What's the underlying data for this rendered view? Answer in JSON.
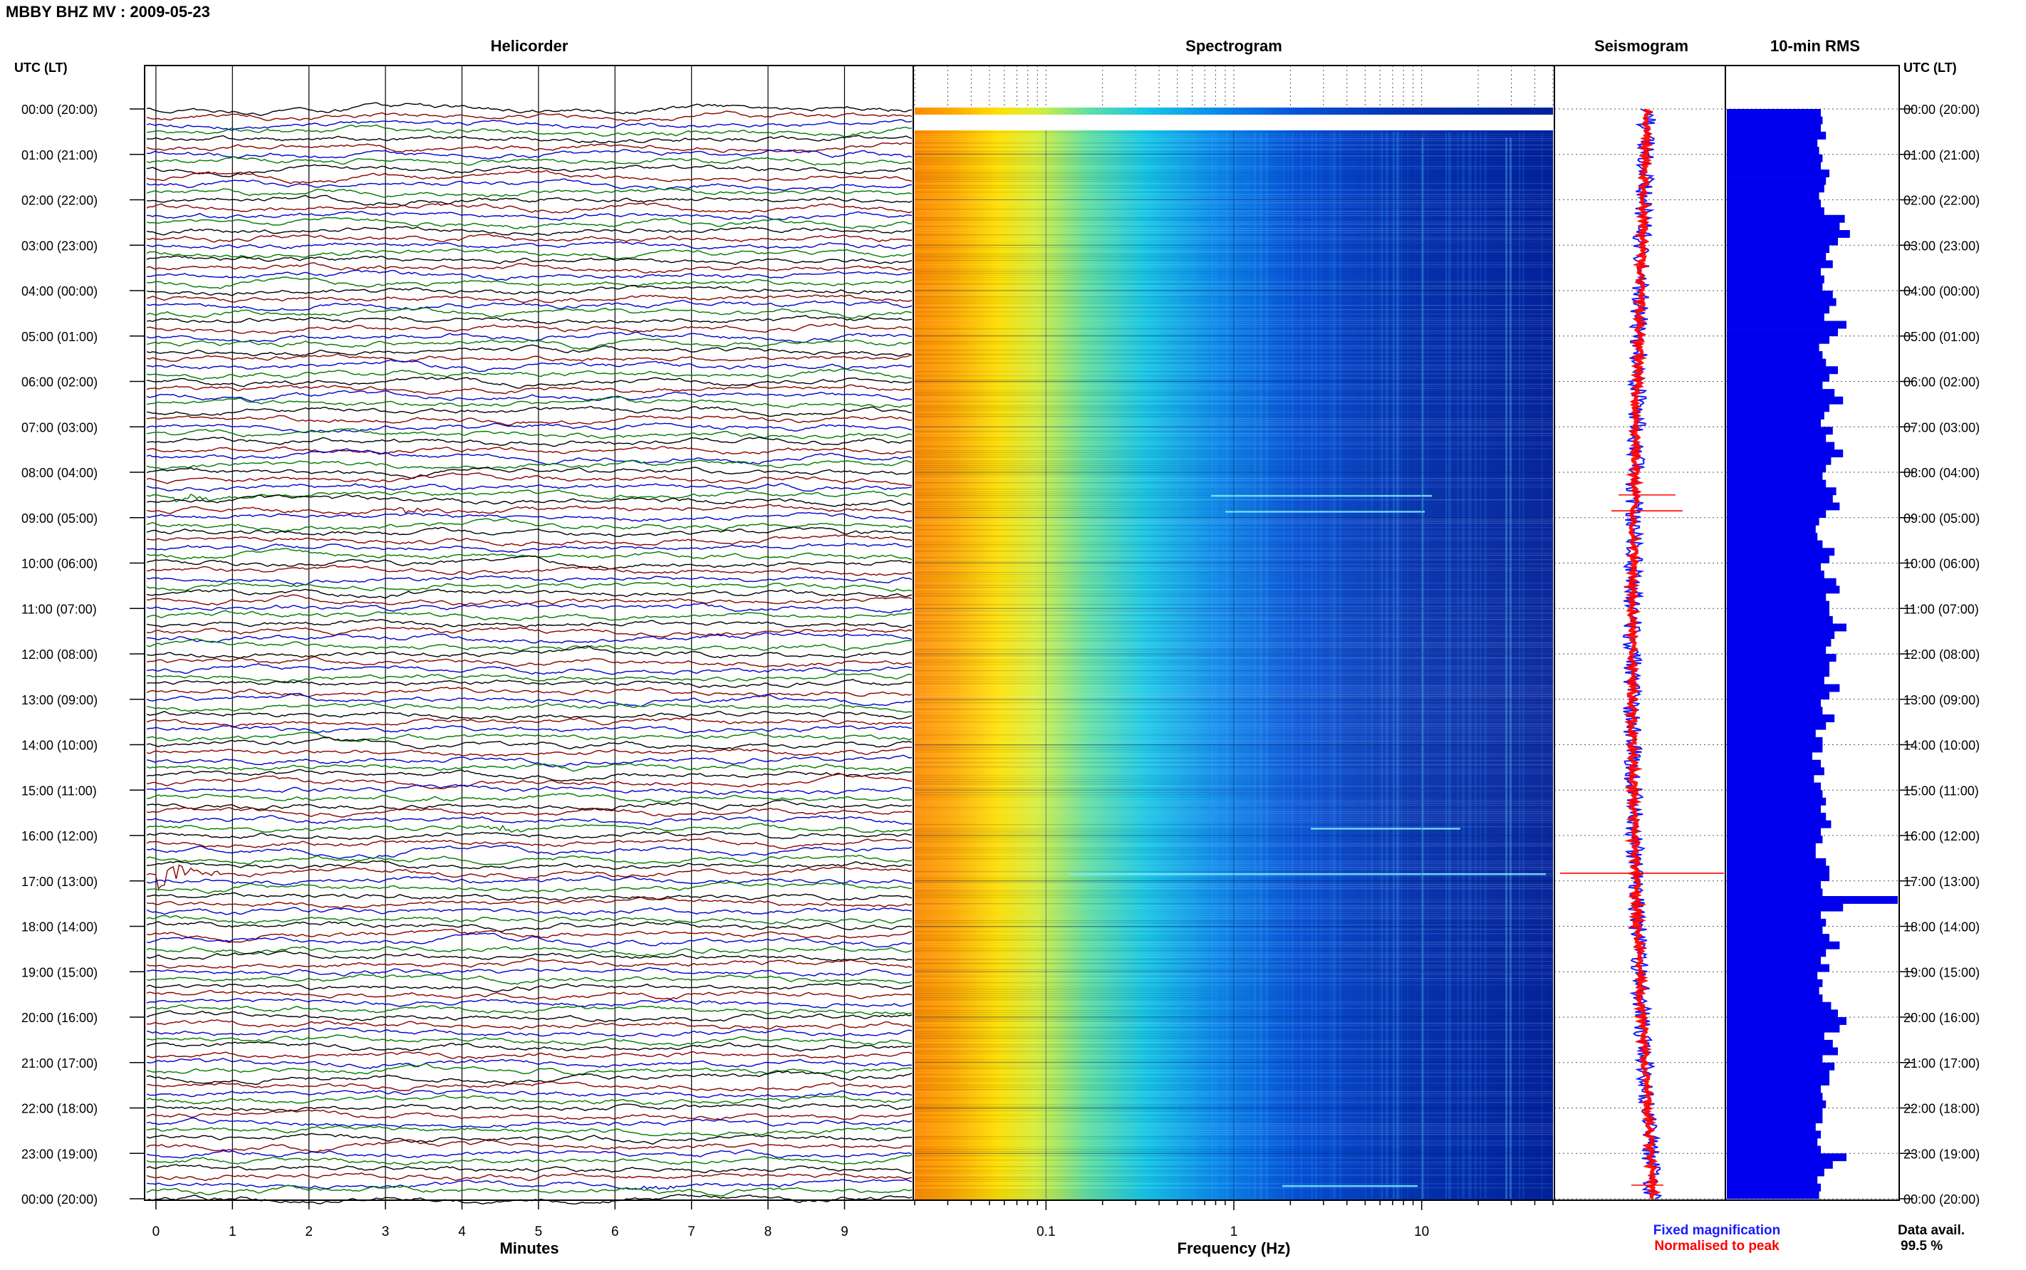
{
  "header": {
    "title": "MBBY BHZ MV : 2009-05-23"
  },
  "panels": {
    "helicorder": "Helicorder",
    "spectrogram": "Spectrogram",
    "seismogram": "Seismogram",
    "rms": "10-min RMS"
  },
  "axis": {
    "time_header_left": "UTC (LT)",
    "time_header_right": "UTC (LT)",
    "time_ticks": [
      "00:00 (20:00)",
      "01:00 (21:00)",
      "02:00 (22:00)",
      "03:00 (23:00)",
      "04:00 (00:00)",
      "05:00 (01:00)",
      "06:00 (02:00)",
      "07:00 (03:00)",
      "08:00 (04:00)",
      "09:00 (05:00)",
      "10:00 (06:00)",
      "11:00 (07:00)",
      "12:00 (08:00)",
      "13:00 (09:00)",
      "14:00 (10:00)",
      "15:00 (11:00)",
      "16:00 (12:00)",
      "17:00 (13:00)",
      "18:00 (14:00)",
      "19:00 (15:00)",
      "20:00 (16:00)",
      "21:00 (17:00)",
      "22:00 (18:00)",
      "23:00 (19:00)",
      "00:00 (20:00)"
    ],
    "minutes_label": "Minutes",
    "minutes_ticks": [
      "0",
      "1",
      "2",
      "3",
      "4",
      "5",
      "6",
      "7",
      "8",
      "9"
    ],
    "frequency_label": "Frequency (Hz)",
    "frequency_ticks": [
      "0.1",
      "1",
      "10"
    ]
  },
  "legend": {
    "fixed": "Fixed magnification",
    "normalised": "Normalised to peak",
    "fixed_color": "#1a1aff",
    "normalised_color": "#ff0000"
  },
  "footer": {
    "data_avail_label": "Data avail.",
    "data_avail_value": "99.5 %"
  },
  "colors": {
    "trace_cycle": [
      "#000000",
      "#8b0000",
      "#0000cc",
      "#007a00"
    ],
    "rms_bar": "#0000ee"
  },
  "chart_data": [
    {
      "type": "line",
      "title": "Helicorder",
      "xlabel": "Minutes",
      "xlim": [
        0,
        10
      ],
      "lines_per_hour": 6,
      "hours": 24,
      "events": [
        {
          "hour": 8.5,
          "minute": 0.4,
          "amplitude": "medium"
        },
        {
          "hour": 8.83,
          "minute": 3.4,
          "amplitude": "medium"
        },
        {
          "hour": 16.83,
          "minute": 0.2,
          "amplitude": "large"
        },
        {
          "hour": 15.83,
          "minute": 4.6,
          "amplitude": "small"
        },
        {
          "hour": 23.67,
          "minute": 6.6,
          "amplitude": "small"
        }
      ]
    },
    {
      "type": "heatmap",
      "title": "Spectrogram",
      "xlabel": "Frequency (Hz)",
      "xscale": "log",
      "xlim": [
        0.02,
        50
      ],
      "colormap": "jet"
    },
    {
      "type": "line",
      "title": "Seismogram",
      "series": [
        {
          "name": "Fixed magnification",
          "color": "#1a1aff"
        },
        {
          "name": "Normalised to peak",
          "color": "#ff0000"
        }
      ]
    },
    {
      "type": "bar",
      "title": "10-min RMS",
      "values": [
        0.55,
        0.56,
        0.55,
        0.58,
        0.53,
        0.54,
        0.56,
        0.55,
        0.6,
        0.58,
        0.57,
        0.54,
        0.55,
        0.57,
        0.69,
        0.66,
        0.72,
        0.65,
        0.6,
        0.58,
        0.62,
        0.55,
        0.57,
        0.56,
        0.62,
        0.64,
        0.6,
        0.57,
        0.7,
        0.65,
        0.6,
        0.54,
        0.56,
        0.58,
        0.65,
        0.6,
        0.56,
        0.63,
        0.68,
        0.6,
        0.57,
        0.55,
        0.62,
        0.58,
        0.63,
        0.68,
        0.61,
        0.58,
        0.56,
        0.58,
        0.64,
        0.62,
        0.66,
        0.58,
        0.54,
        0.52,
        0.53,
        0.56,
        0.63,
        0.6,
        0.55,
        0.57,
        0.64,
        0.66,
        0.58,
        0.6,
        0.6,
        0.62,
        0.7,
        0.63,
        0.61,
        0.58,
        0.64,
        0.6,
        0.6,
        0.57,
        0.66,
        0.6,
        0.55,
        0.56,
        0.63,
        0.58,
        0.52,
        0.56,
        0.56,
        0.5,
        0.55,
        0.57,
        0.51,
        0.55,
        0.56,
        0.58,
        0.55,
        0.58,
        0.61,
        0.55,
        0.56,
        0.52,
        0.52,
        0.58,
        0.6,
        0.6,
        0.55,
        0.56,
        1.0,
        0.68,
        0.55,
        0.58,
        0.56,
        0.6,
        0.66,
        0.58,
        0.55,
        0.6,
        0.53,
        0.56,
        0.54,
        0.56,
        0.61,
        0.65,
        0.7,
        0.66,
        0.57,
        0.62,
        0.65,
        0.56,
        0.63,
        0.6,
        0.6,
        0.55,
        0.56,
        0.58,
        0.56,
        0.56,
        0.52,
        0.55,
        0.53,
        0.55,
        0.7,
        0.62,
        0.57,
        0.53,
        0.55,
        0.54
      ]
    }
  ]
}
